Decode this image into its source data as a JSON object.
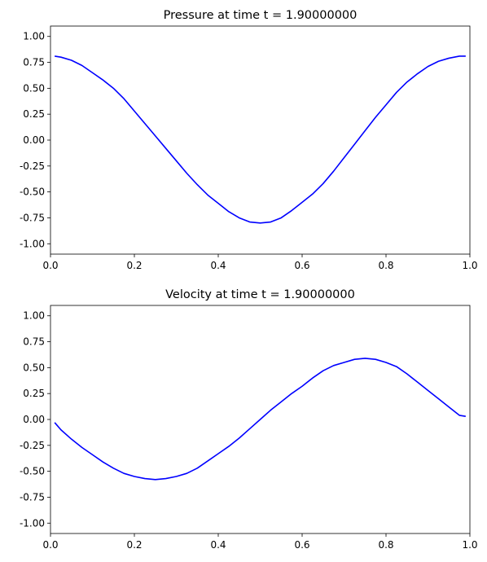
{
  "chart_data": [
    {
      "type": "line",
      "title": "Pressure at time t =     1.90000000",
      "xlabel": "",
      "ylabel": "",
      "xlim": [
        0.0,
        1.0
      ],
      "ylim": [
        -1.1,
        1.1
      ],
      "xticks": [
        "0.0",
        "0.2",
        "0.4",
        "0.6",
        "0.8",
        "1.0"
      ],
      "yticks": [
        "1.00",
        "0.75",
        "0.50",
        "0.25",
        "0.00",
        "-0.25",
        "-0.50",
        "-0.75",
        "-1.00"
      ],
      "grid": false,
      "series": [
        {
          "color": "#0000ff",
          "x": [
            0.01,
            0.025,
            0.05,
            0.075,
            0.1,
            0.125,
            0.15,
            0.175,
            0.2,
            0.225,
            0.25,
            0.275,
            0.3,
            0.325,
            0.35,
            0.375,
            0.4,
            0.425,
            0.45,
            0.475,
            0.5,
            0.525,
            0.55,
            0.575,
            0.6,
            0.625,
            0.65,
            0.675,
            0.7,
            0.725,
            0.75,
            0.775,
            0.8,
            0.825,
            0.85,
            0.875,
            0.9,
            0.925,
            0.95,
            0.975,
            0.99
          ],
          "y": [
            0.81,
            0.8,
            0.77,
            0.72,
            0.65,
            0.58,
            0.5,
            0.4,
            0.28,
            0.16,
            0.04,
            -0.08,
            -0.2,
            -0.32,
            -0.43,
            -0.53,
            -0.61,
            -0.69,
            -0.75,
            -0.79,
            -0.8,
            -0.79,
            -0.75,
            -0.68,
            -0.6,
            -0.52,
            -0.42,
            -0.3,
            -0.17,
            -0.04,
            0.09,
            0.22,
            0.34,
            0.46,
            0.56,
            0.64,
            0.71,
            0.76,
            0.79,
            0.81,
            0.81
          ]
        }
      ]
    },
    {
      "type": "line",
      "title": "Velocity at time t =     1.90000000",
      "xlabel": "",
      "ylabel": "",
      "xlim": [
        0.0,
        1.0
      ],
      "ylim": [
        -1.1,
        1.1
      ],
      "xticks": [
        "0.0",
        "0.2",
        "0.4",
        "0.6",
        "0.8",
        "1.0"
      ],
      "yticks": [
        "1.00",
        "0.75",
        "0.50",
        "0.25",
        "0.00",
        "-0.25",
        "-0.50",
        "-0.75",
        "-1.00"
      ],
      "grid": false,
      "series": [
        {
          "color": "#0000ff",
          "x": [
            0.01,
            0.025,
            0.05,
            0.075,
            0.1,
            0.125,
            0.15,
            0.175,
            0.2,
            0.225,
            0.25,
            0.275,
            0.3,
            0.325,
            0.35,
            0.375,
            0.4,
            0.425,
            0.45,
            0.475,
            0.5,
            0.525,
            0.55,
            0.575,
            0.6,
            0.625,
            0.65,
            0.675,
            0.7,
            0.725,
            0.75,
            0.775,
            0.8,
            0.825,
            0.85,
            0.875,
            0.9,
            0.925,
            0.95,
            0.975,
            0.99
          ],
          "y": [
            -0.03,
            -0.1,
            -0.19,
            -0.27,
            -0.34,
            -0.41,
            -0.47,
            -0.52,
            -0.55,
            -0.57,
            -0.58,
            -0.57,
            -0.55,
            -0.52,
            -0.47,
            -0.4,
            -0.33,
            -0.26,
            -0.18,
            -0.09,
            0.0,
            0.09,
            0.17,
            0.25,
            0.32,
            0.4,
            0.47,
            0.52,
            0.55,
            0.58,
            0.59,
            0.58,
            0.55,
            0.51,
            0.44,
            0.36,
            0.28,
            0.2,
            0.12,
            0.04,
            0.03
          ]
        }
      ]
    }
  ]
}
